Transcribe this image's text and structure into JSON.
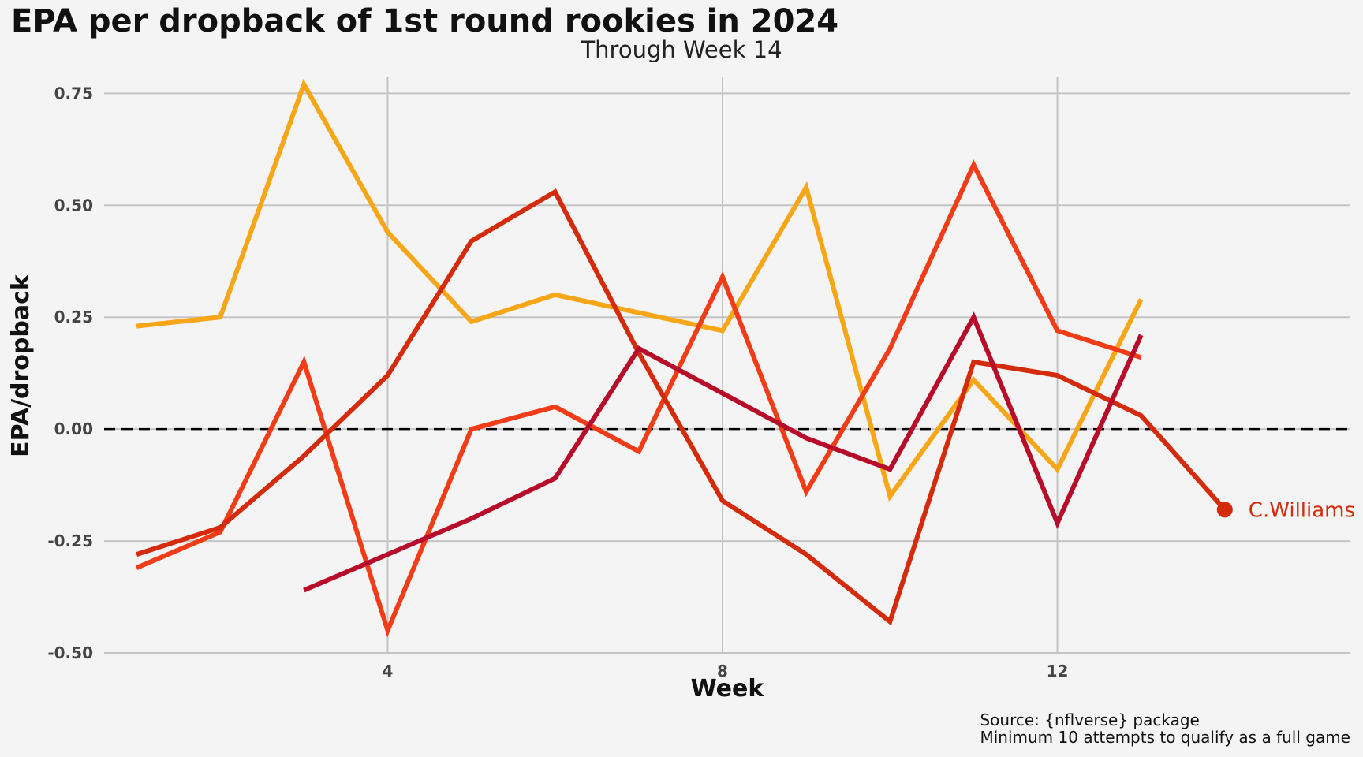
{
  "chart_data": {
    "type": "line",
    "title": "EPA per dropback of 1st round rookies in 2024",
    "subtitle": "Through Week 14",
    "xlabel": "Week",
    "ylabel": "EPA/dropback",
    "xlim": [
      0.5,
      15.5
    ],
    "ylim": [
      -0.5,
      0.8
    ],
    "x_ticks": [
      4,
      8,
      12
    ],
    "y_ticks": [
      -0.5,
      -0.25,
      0,
      0.25,
      0.5,
      0.75
    ],
    "y_tick_labels": [
      "-0.50",
      "-0.25",
      "0.00",
      "0.25",
      "0.50",
      "0.75"
    ],
    "grid": true,
    "reference_line": {
      "y": 0,
      "style": "dashed"
    },
    "series": [
      {
        "color": "#f7a618",
        "x": [
          1,
          2,
          3,
          4,
          5,
          6,
          7,
          8,
          9,
          10,
          11,
          12,
          13
        ],
        "values": [
          0.23,
          0.25,
          0.77,
          0.44,
          0.24,
          0.3,
          0.26,
          0.22,
          0.54,
          -0.15,
          0.11,
          -0.09,
          0.29
        ]
      },
      {
        "color": "#f03d18",
        "x": [
          1,
          2,
          3,
          4,
          5,
          6,
          7,
          8,
          9,
          10,
          11,
          12,
          13
        ],
        "values": [
          -0.31,
          -0.23,
          0.15,
          -0.45,
          0.0,
          0.05,
          -0.05,
          0.34,
          -0.14,
          0.18,
          0.59,
          0.22,
          0.16
        ]
      },
      {
        "color": "#d42b0c",
        "x": [
          1,
          2,
          3,
          4,
          5,
          6,
          7,
          8,
          9,
          10,
          11,
          12,
          13,
          14
        ],
        "values": [
          -0.28,
          -0.22,
          -0.06,
          0.12,
          0.42,
          0.53,
          0.17,
          -0.16,
          -0.28,
          -0.43,
          0.15,
          0.12,
          0.03,
          -0.18
        ]
      },
      {
        "color": "#b80d2a",
        "x": [
          3,
          4,
          5,
          6,
          7,
          8,
          9,
          10,
          11,
          12,
          13
        ],
        "values": [
          -0.36,
          -0.28,
          -0.2,
          -0.11,
          0.18,
          0.08,
          -0.02,
          -0.09,
          0.25,
          -0.21,
          0.21
        ]
      }
    ],
    "highlight": {
      "series_index": 2,
      "x": 14,
      "y": -0.18,
      "label": "C.Williams"
    }
  },
  "caption": {
    "line1": "Source: {nflverse} package",
    "line2": "Minimum 10 attempts to qualify as a full game"
  },
  "colors": {
    "background": "#f4f4f4",
    "grid": "#c4c4c4",
    "reference_line": "#000000",
    "highlight_label": "#d42b0c"
  }
}
